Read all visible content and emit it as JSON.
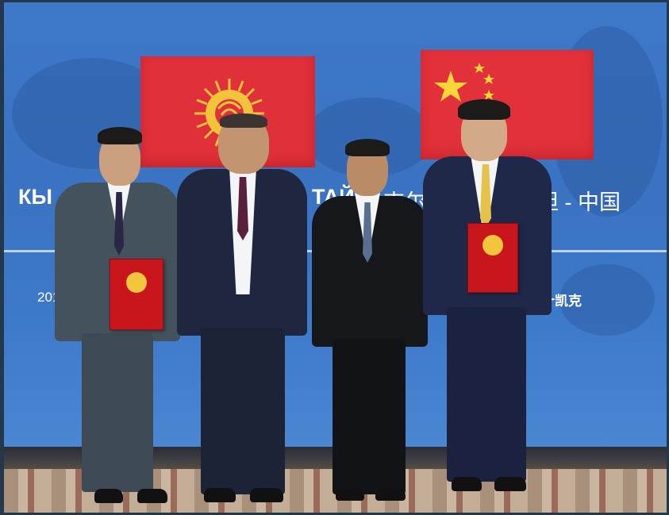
{
  "banner": {
    "heading_left_fragment": "КЫ",
    "heading_mid_fragment": "ТАЙ",
    "heading_chinese_fragment_1": "吉尔",
    "heading_chinese_fragment_2": "坦 - 中国",
    "subline_left_fragment": "2019-",
    "subline_right_fragment": "比什凯克"
  },
  "flags": {
    "left": "kyrgyzstan-flag",
    "right": "china-flag"
  },
  "colors": {
    "backdrop_blue": "#3c77c7",
    "flag_red": "#e0303a",
    "folder_red": "#c9161d",
    "suit_navy": "#1f2740",
    "suit_grey": "#44525e",
    "emblem_gold": "#f2c73d"
  }
}
